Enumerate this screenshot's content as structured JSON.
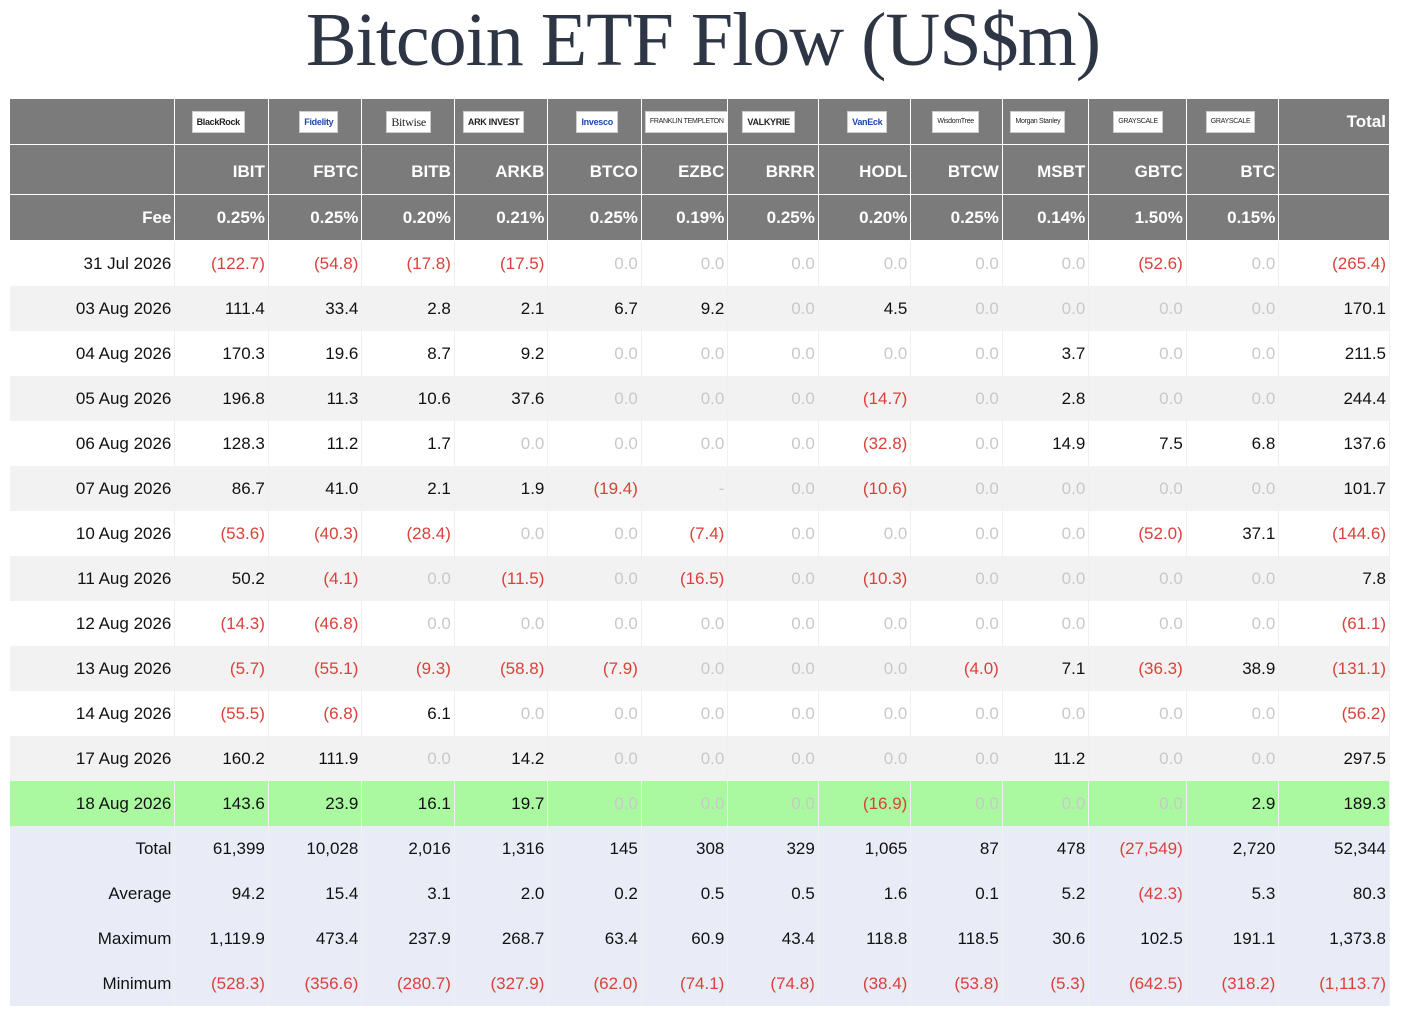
{
  "title": "Bitcoin ETF Flow (US$m)",
  "header": {
    "logos": [
      {
        "key": "IBIT",
        "logo": "BlackRock"
      },
      {
        "key": "FBTC",
        "logo": "Fidelity"
      },
      {
        "key": "BITB",
        "logo": "Bitwise"
      },
      {
        "key": "ARKB",
        "logo": "ARK INVEST"
      },
      {
        "key": "BTCO",
        "logo": "Invesco"
      },
      {
        "key": "EZBC",
        "logo": "FRANKLIN TEMPLETON"
      },
      {
        "key": "BRRR",
        "logo": "VALKYRIE"
      },
      {
        "key": "HODL",
        "logo": "VanEck"
      },
      {
        "key": "BTCW",
        "logo": "WisdomTree"
      },
      {
        "key": "MSBT",
        "logo": "Morgan Stanley"
      },
      {
        "key": "GBTC",
        "logo": "GRAYSCALE"
      },
      {
        "key": "BTC",
        "logo": "GRAYSCALE"
      }
    ],
    "total_label": "Total",
    "tickers": [
      "IBIT",
      "FBTC",
      "BITB",
      "ARKB",
      "BTCO",
      "EZBC",
      "BRRR",
      "HODL",
      "BTCW",
      "MSBT",
      "GBTC",
      "BTC"
    ],
    "fee_label": "Fee",
    "fees": [
      "0.25%",
      "0.25%",
      "0.20%",
      "0.21%",
      "0.25%",
      "0.19%",
      "0.25%",
      "0.20%",
      "0.25%",
      "0.14%",
      "1.50%",
      "0.15%"
    ]
  },
  "rows": [
    {
      "date": "31 Jul 2026",
      "values": [
        "(122.7)",
        "(54.8)",
        "(17.8)",
        "(17.5)",
        "0.0",
        "0.0",
        "0.0",
        "0.0",
        "0.0",
        "0.0",
        "(52.6)",
        "0.0"
      ],
      "total": "(265.4)"
    },
    {
      "date": "03 Aug 2026",
      "values": [
        "111.4",
        "33.4",
        "2.8",
        "2.1",
        "6.7",
        "9.2",
        "0.0",
        "4.5",
        "0.0",
        "0.0",
        "0.0",
        "0.0"
      ],
      "total": "170.1"
    },
    {
      "date": "04 Aug 2026",
      "values": [
        "170.3",
        "19.6",
        "8.7",
        "9.2",
        "0.0",
        "0.0",
        "0.0",
        "0.0",
        "0.0",
        "3.7",
        "0.0",
        "0.0"
      ],
      "total": "211.5"
    },
    {
      "date": "05 Aug 2026",
      "values": [
        "196.8",
        "11.3",
        "10.6",
        "37.6",
        "0.0",
        "0.0",
        "0.0",
        "(14.7)",
        "0.0",
        "2.8",
        "0.0",
        "0.0"
      ],
      "total": "244.4"
    },
    {
      "date": "06 Aug 2026",
      "values": [
        "128.3",
        "11.2",
        "1.7",
        "0.0",
        "0.0",
        "0.0",
        "0.0",
        "(32.8)",
        "0.0",
        "14.9",
        "7.5",
        "6.8"
      ],
      "total": "137.6"
    },
    {
      "date": "07 Aug 2026",
      "values": [
        "86.7",
        "41.0",
        "2.1",
        "1.9",
        "(19.4)",
        "-",
        "0.0",
        "(10.6)",
        "0.0",
        "0.0",
        "0.0",
        "0.0"
      ],
      "total": "101.7"
    },
    {
      "date": "10 Aug 2026",
      "values": [
        "(53.6)",
        "(40.3)",
        "(28.4)",
        "0.0",
        "0.0",
        "(7.4)",
        "0.0",
        "0.0",
        "0.0",
        "0.0",
        "(52.0)",
        "37.1"
      ],
      "total": "(144.6)"
    },
    {
      "date": "11 Aug 2026",
      "values": [
        "50.2",
        "(4.1)",
        "0.0",
        "(11.5)",
        "0.0",
        "(16.5)",
        "0.0",
        "(10.3)",
        "0.0",
        "0.0",
        "0.0",
        "0.0"
      ],
      "total": "7.8"
    },
    {
      "date": "12 Aug 2026",
      "values": [
        "(14.3)",
        "(46.8)",
        "0.0",
        "0.0",
        "0.0",
        "0.0",
        "0.0",
        "0.0",
        "0.0",
        "0.0",
        "0.0",
        "0.0"
      ],
      "total": "(61.1)"
    },
    {
      "date": "13 Aug 2026",
      "values": [
        "(5.7)",
        "(55.1)",
        "(9.3)",
        "(58.8)",
        "(7.9)",
        "0.0",
        "0.0",
        "0.0",
        "(4.0)",
        "7.1",
        "(36.3)",
        "38.9"
      ],
      "total": "(131.1)"
    },
    {
      "date": "14 Aug 2026",
      "values": [
        "(55.5)",
        "(6.8)",
        "6.1",
        "0.0",
        "0.0",
        "0.0",
        "0.0",
        "0.0",
        "0.0",
        "0.0",
        "0.0",
        "0.0"
      ],
      "total": "(56.2)"
    },
    {
      "date": "17 Aug 2026",
      "values": [
        "160.2",
        "111.9",
        "0.0",
        "14.2",
        "0.0",
        "0.0",
        "0.0",
        "0.0",
        "0.0",
        "11.2",
        "0.0",
        "0.0"
      ],
      "total": "297.5"
    },
    {
      "date": "18 Aug 2026",
      "values": [
        "143.6",
        "23.9",
        "16.1",
        "19.7",
        "0.0",
        "0.0",
        "0.0",
        "(16.9)",
        "0.0",
        "0.0",
        "0.0",
        "2.9"
      ],
      "total": "189.3",
      "highlight": true
    }
  ],
  "summary": [
    {
      "label": "Total",
      "values": [
        "61,399",
        "10,028",
        "2,016",
        "1,316",
        "145",
        "308",
        "329",
        "1,065",
        "87",
        "478",
        "(27,549)",
        "2,720"
      ],
      "total": "52,344"
    },
    {
      "label": "Average",
      "values": [
        "94.2",
        "15.4",
        "3.1",
        "2.0",
        "0.2",
        "0.5",
        "0.5",
        "1.6",
        "0.1",
        "5.2",
        "(42.3)",
        "5.3"
      ],
      "total": "80.3"
    },
    {
      "label": "Maximum",
      "values": [
        "1,119.9",
        "473.4",
        "237.9",
        "268.7",
        "63.4",
        "60.9",
        "43.4",
        "118.8",
        "118.5",
        "30.6",
        "102.5",
        "191.1"
      ],
      "total": "1,373.8"
    },
    {
      "label": "Minimum",
      "values": [
        "(528.3)",
        "(356.6)",
        "(280.7)",
        "(327.9)",
        "(62.0)",
        "(74.1)",
        "(74.8)",
        "(38.4)",
        "(53.8)",
        "(5.3)",
        "(642.5)",
        "(318.2)"
      ],
      "total": "(1,113.7)"
    }
  ],
  "colors": {
    "header_bg": "#7b7b7b",
    "negative": "#d9413a",
    "zero": "#c9c9c9",
    "highlight_row": "#aaf9a0",
    "summary_bg": "#e9ecf7",
    "title": "#2e3545"
  }
}
